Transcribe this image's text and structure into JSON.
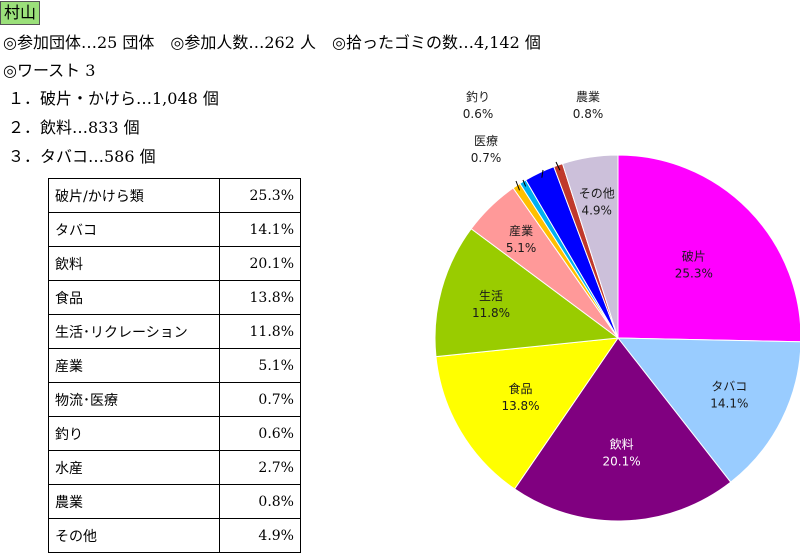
{
  "header": {
    "title": "村山",
    "summary": "◎参加団体…25 団体　◎参加人数…262 人　◎拾ったゴミの数…4,142 個",
    "worst_heading": "◎ワースト 3",
    "worst": [
      "１．破片・かけら…1,048 個",
      "２．飲料…833 個",
      "３．タバコ…586 個"
    ]
  },
  "table": {
    "rows": [
      {
        "category": "破片/かけら類",
        "value": "25.3%"
      },
      {
        "category": "タバコ",
        "value": "14.1%"
      },
      {
        "category": "飲料",
        "value": "20.1%"
      },
      {
        "category": "食品",
        "value": "13.8%"
      },
      {
        "category": "生活･リクレーション",
        "value": "11.8%"
      },
      {
        "category": "産業",
        "value": "5.1%"
      },
      {
        "category": "物流･医療",
        "value": "0.7%"
      },
      {
        "category": "釣り",
        "value": "0.6%"
      },
      {
        "category": "水産",
        "value": "2.7%"
      },
      {
        "category": "農業",
        "value": "0.8%"
      },
      {
        "category": "その他",
        "value": "4.9%"
      }
    ]
  },
  "chart_data": {
    "type": "pie",
    "title": "",
    "slices": [
      {
        "label": "破片",
        "value": 25.3,
        "display": "25.3%",
        "color": "#ff00ff"
      },
      {
        "label": "タバコ",
        "value": 14.1,
        "display": "14.1%",
        "color": "#99ccff"
      },
      {
        "label": "飲料",
        "value": 20.1,
        "display": "20.1%",
        "color": "#800080"
      },
      {
        "label": "食品",
        "value": 13.8,
        "display": "13.8%",
        "color": "#ffff00"
      },
      {
        "label": "生活",
        "value": 11.8,
        "display": "11.8%",
        "color": "#99cc00"
      },
      {
        "label": "産業",
        "value": 5.1,
        "display": "5.1%",
        "color": "#ff9999"
      },
      {
        "label": "医療",
        "value": 0.7,
        "display": "0.7%",
        "color": "#ffc000"
      },
      {
        "label": "釣り",
        "value": 0.6,
        "display": "0.6%",
        "color": "#00b0f0"
      },
      {
        "label": "水産",
        "value": 2.7,
        "display": "2.7%",
        "color": "#0000ff"
      },
      {
        "label": "農業",
        "value": 0.8,
        "display": "0.8%",
        "color": "#c0392b"
      },
      {
        "label": "その他",
        "value": 4.9,
        "display": "4.9%",
        "color": "#ccc0da"
      }
    ]
  }
}
